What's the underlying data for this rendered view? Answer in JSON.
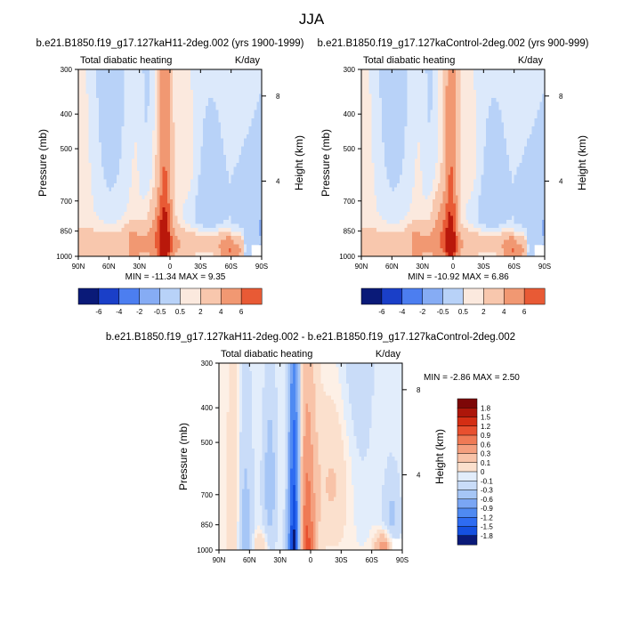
{
  "figure": {
    "title": "JJA"
  },
  "colors": {
    "lower": [
      "#0a1a78",
      "#0b2ca8",
      "#1550e0",
      "#2e6cf2",
      "#4f8af2",
      "#7aa6f4",
      "#a6c6f6",
      "#d2e4fa"
    ],
    "upper": [
      "#fbe3d4",
      "#f8c3a8",
      "#f49f7e",
      "#ef7a55",
      "#e8502f",
      "#d42e14",
      "#ad160a",
      "#7d0707"
    ]
  },
  "chart_data": [
    {
      "id": "top-left",
      "type": "heatmap",
      "title": "b.e21.B1850.f19_g17.127kaH11-2deg.002 (yrs 1900-1999)",
      "left_label": "Total diabatic heating",
      "right_label": "K/day",
      "xlabel": "",
      "ylabel": "Pressure (mb)",
      "y2label": "Height (km)",
      "x_ticks": [
        "90N",
        "60N",
        "30N",
        "0",
        "30S",
        "60S",
        "90S"
      ],
      "y_ticks": [
        "300",
        "400",
        "500",
        "700",
        "850",
        "1000"
      ],
      "y2_ticks": [
        "8",
        "4"
      ],
      "xlim": [
        90,
        -90
      ],
      "ylim": [
        1000,
        300
      ],
      "stats_text": "MIN = -11.34  MAX =   9.35",
      "min": -11.34,
      "max": 9.35,
      "levels": [
        -6,
        -4,
        -2,
        -0.5,
        0.5,
        2,
        4,
        6
      ],
      "colorbar": {
        "labels": [
          "-6",
          "-4",
          "-2",
          "-0.5",
          "0.5",
          "2",
          "4",
          "6"
        ]
      }
    },
    {
      "id": "top-right",
      "type": "heatmap",
      "title": "b.e21.B1850.f19_g17.127kaControl-2deg.002 (yrs 900-999)",
      "left_label": "Total diabatic heating",
      "right_label": "K/day",
      "xlabel": "",
      "ylabel": "Pressure (mb)",
      "y2label": "Height (km)",
      "x_ticks": [
        "90N",
        "60N",
        "30N",
        "0",
        "30S",
        "60S",
        "90S"
      ],
      "y_ticks": [
        "300",
        "400",
        "500",
        "700",
        "850",
        "1000"
      ],
      "y2_ticks": [
        "8",
        "4"
      ],
      "xlim": [
        90,
        -90
      ],
      "ylim": [
        1000,
        300
      ],
      "stats_text": "MIN = -10.92  MAX =   6.86",
      "min": -10.92,
      "max": 6.86,
      "levels": [
        -6,
        -4,
        -2,
        -0.5,
        0.5,
        2,
        4,
        6
      ],
      "colorbar": {
        "labels": [
          "-6",
          "-4",
          "-2",
          "-0.5",
          "0.5",
          "2",
          "4",
          "6"
        ]
      }
    },
    {
      "id": "bottom",
      "type": "heatmap",
      "title": "b.e21.B1850.f19_g17.127kaH11-2deg.002 - b.e21.B1850.f19_g17.127kaControl-2deg.002",
      "left_label": "Total diabatic heating",
      "right_label": "K/day",
      "xlabel": "",
      "ylabel": "Pressure (mb)",
      "y2label": "Height (km)",
      "x_ticks": [
        "90N",
        "60N",
        "30N",
        "0",
        "30S",
        "60S",
        "90S"
      ],
      "y_ticks": [
        "300",
        "400",
        "500",
        "700",
        "850",
        "1000"
      ],
      "y2_ticks": [
        "8",
        "4"
      ],
      "xlim": [
        90,
        -90
      ],
      "ylim": [
        1000,
        300
      ],
      "stats_text": "MIN = -2.86  MAX =   2.50",
      "min": -2.86,
      "max": 2.5,
      "levels": [
        -1.8,
        -1.5,
        -1.2,
        -0.9,
        -0.6,
        -0.3,
        -0.1,
        0,
        0.1,
        0.3,
        0.6,
        0.9,
        1.2,
        1.5,
        1.8
      ],
      "colorbar": {
        "orientation": "vertical",
        "labels": [
          "1.8",
          "1.5",
          "1.2",
          "0.9",
          "0.6",
          "0.3",
          "0.1",
          "0",
          "-0.1",
          "-0.3",
          "-0.6",
          "-0.9",
          "-1.2",
          "-1.5",
          "-1.8"
        ]
      }
    }
  ]
}
